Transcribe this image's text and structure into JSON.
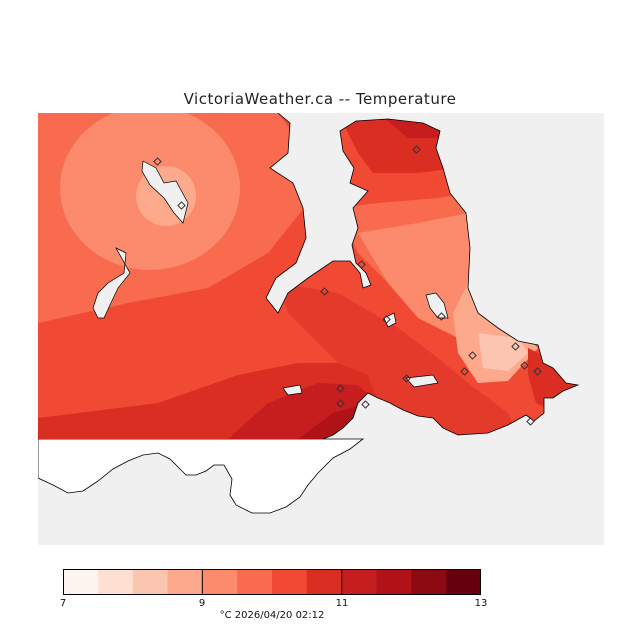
{
  "header": {
    "title": "VictoriaWeather.ca -- Temperature"
  },
  "legend": {
    "colors": [
      "#fff5f0",
      "#fee0d2",
      "#fcc5b0",
      "#fca98c",
      "#fb8b6c",
      "#f86b4e",
      "#f04a35",
      "#db2e22",
      "#c61d1e",
      "#b01218",
      "#8c0b13",
      "#67000d"
    ],
    "ticks": [
      "7",
      "9",
      "11",
      "13"
    ],
    "min": 7,
    "max": 13,
    "unit": "°C",
    "timestamp": "2026/04/20 02:12",
    "caption": "°C  2026/04/20 02:12"
  }
}
